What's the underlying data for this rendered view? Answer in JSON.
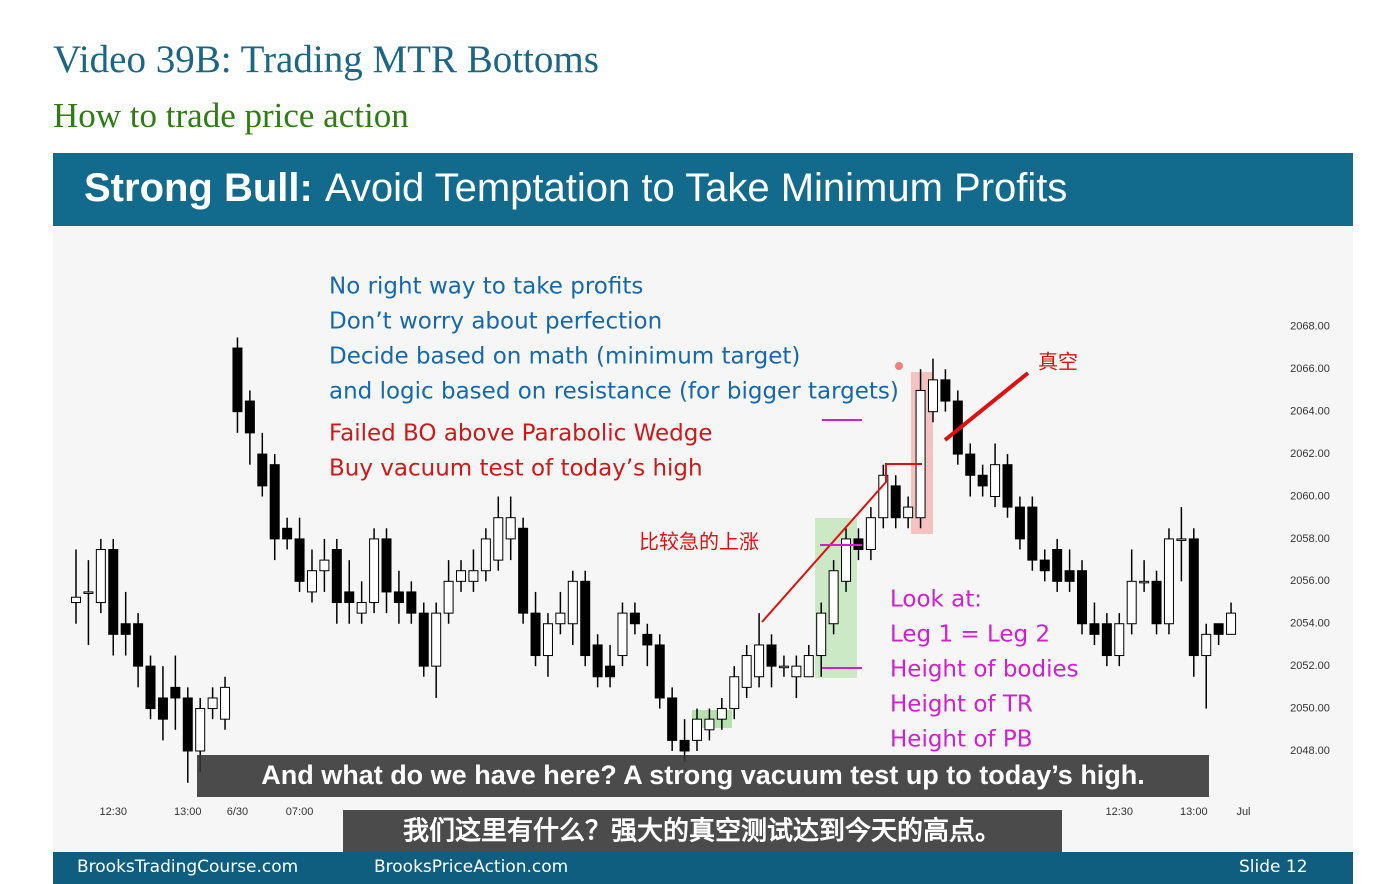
{
  "header": {
    "title": "Video 39B: Trading MTR Bottoms",
    "subtitle": "How to trade price action"
  },
  "slide": {
    "title_bold": "Strong Bull:",
    "title_rest": "Avoid Temptation to Take Minimum Profits",
    "notes_blue": [
      "No right way to take profits",
      "Don’t worry about perfection",
      "Decide based on math (minimum target)",
      "and logic based on resistance (for bigger targets)"
    ],
    "notes_red": [
      "Failed BO above Parabolic Wedge",
      "Buy vacuum test of today’s high"
    ],
    "label_vacuum": "真空",
    "label_rally": "比较急的上涨",
    "look_at": [
      "Look at:",
      "Leg 1 = Leg 2",
      "Height of bodies",
      "Height of TR",
      "Height of PB"
    ],
    "footer": {
      "left": "BrooksTradingCourse.com",
      "center": "BrooksPriceAction.com",
      "slide": "Slide  12"
    }
  },
  "captions": {
    "english": "And what do we have here? A strong vacuum test up to today’s high.",
    "chinese": "我们这里有什么？强大的真空测试达到今天的高点。"
  },
  "chart_data": {
    "type": "candlestick",
    "categories": [
      null,
      null,
      null,
      "12:30",
      null,
      null,
      null,
      null,
      null,
      "13:00",
      null,
      null,
      null,
      "6/30",
      null,
      null,
      null,
      null,
      "07:00",
      null,
      null,
      null,
      null,
      null,
      null,
      null,
      null,
      null,
      null,
      null,
      null,
      null,
      null,
      null,
      null,
      null,
      null,
      null,
      null,
      null,
      null,
      null,
      null,
      null,
      null,
      null,
      null,
      null,
      null,
      null,
      null,
      null,
      null,
      null,
      null,
      null,
      null,
      null,
      null,
      null,
      null,
      null,
      null,
      null,
      null,
      null,
      null,
      null,
      null,
      null,
      null,
      null,
      null,
      null,
      null,
      null,
      null,
      null,
      null,
      null,
      null,
      null,
      null,
      null,
      "12:30",
      null,
      null,
      null,
      null,
      null,
      "13:00",
      null,
      null,
      null,
      "Jul"
    ],
    "open": [
      2055,
      2055.5,
      2055,
      2057.5,
      2054,
      2054,
      2052,
      2050.5,
      2051,
      2050.5,
      2048,
      2050,
      2049.5,
      2067,
      2064.5,
      2062,
      2061.5,
      2058.5,
      2058,
      2055.5,
      2056.5,
      2057.5,
      2055.5,
      2054.5,
      2055,
      2058,
      2055.5,
      2055.5,
      2054.5,
      2052,
      2054.5,
      2056,
      2056,
      2056.5,
      2057,
      2058,
      2058.5,
      2054.5,
      2052.5,
      2054,
      2054,
      2056,
      2053,
      2052,
      2052.5,
      2054.5,
      2053.5,
      2053,
      2050.5,
      2048.5,
      2048.5,
      2049,
      2049.5,
      2050,
      2051,
      2051.5,
      2053,
      2052,
      2051.5,
      2051.5,
      2052.5,
      2054,
      2056,
      2058,
      2057.5,
      2059,
      2060.5,
      2059,
      2059,
      2064,
      2065.5,
      2064.5,
      2062,
      2061,
      2060,
      2061.5,
      2059.5,
      2059.5,
      2057,
      2057.5,
      2056.5,
      2056.5,
      2054,
      2054,
      2052.5,
      2054,
      2056,
      2056,
      2054,
      2058,
      2058,
      2052.5,
      2054,
      2053.5,
      null
    ],
    "high": [
      2057.5,
      2057,
      2058,
      2058,
      2055.5,
      2054.5,
      2052.5,
      2052,
      2052.5,
      2051,
      2050.5,
      2051,
      2051.5,
      2067.5,
      2065,
      2063,
      2062,
      2059,
      2059,
      2057.5,
      2058,
      2058,
      2057,
      2056,
      2058.5,
      2058.5,
      2056.5,
      2056,
      2055,
      2055,
      2057,
      2057,
      2057.5,
      2058.5,
      2060,
      2060,
      2059,
      2055.5,
      2054.5,
      2055.5,
      2056.5,
      2056.5,
      2053.5,
      2053,
      2055,
      2055,
      2054,
      2053.5,
      2051,
      2049.5,
      2050,
      2050,
      2050.5,
      2052,
      2053,
      2054.5,
      2053.5,
      2052.5,
      2052.5,
      2053,
      2055,
      2057,
      2058.5,
      2058.5,
      2059.5,
      2061.5,
      2061,
      2060,
      2066,
      2066.5,
      2066,
      2065,
      2062.5,
      2061.5,
      2062.5,
      2062,
      2060,
      2060,
      2057.5,
      2058,
      2057.5,
      2057,
      2055,
      2054.5,
      2054.5,
      2057.5,
      2057,
      2056.5,
      2058.5,
      2059.5,
      2058.5,
      2054,
      2054,
      2055,
      null
    ],
    "low": [
      2054,
      2053,
      2054.5,
      2052.5,
      2052.5,
      2051,
      2049.5,
      2048.5,
      2049,
      2046.5,
      2047,
      2049.5,
      2049,
      2063,
      2061.5,
      2060,
      2057,
      2057.5,
      2055.5,
      2055,
      2055.5,
      2054,
      2054,
      2054,
      2054.5,
      2054.5,
      2054,
      2054,
      2051.5,
      2050.5,
      2054,
      2055.5,
      2055.5,
      2056,
      2056.5,
      2057,
      2054,
      2052,
      2051.5,
      2053.5,
      2053,
      2052,
      2051,
      2051,
      2052,
      2053.5,
      2052,
      2050,
      2048,
      2047.5,
      2048,
      2048.5,
      2049,
      2049.5,
      2050.5,
      2051,
      2051,
      2051.5,
      2050.5,
      2051.5,
      2051.5,
      2053.5,
      2055.5,
      2057,
      2057,
      2058.5,
      2058.5,
      2058.5,
      2058.5,
      2063.5,
      2064,
      2061.5,
      2060,
      2060,
      2059.5,
      2059,
      2057.5,
      2056.5,
      2056,
      2055.5,
      2055.5,
      2053.5,
      2053,
      2052,
      2052,
      2053.5,
      2055.5,
      2053.5,
      2053.5,
      2056,
      2051.5,
      2050,
      2053,
      2053.5,
      null
    ],
    "close": [
      2055.25,
      2055.5,
      2057.5,
      2053.5,
      2053.5,
      2052,
      2050,
      2049.5,
      2050.5,
      2048,
      2050,
      2050.5,
      2051,
      2064,
      2063,
      2060.5,
      2058,
      2058,
      2056,
      2056.5,
      2057,
      2055,
      2055,
      2055,
      2058,
      2055.5,
      2055,
      2054.5,
      2052,
      2054.5,
      2056,
      2056.5,
      2056.5,
      2058,
      2059,
      2059,
      2054.5,
      2052.5,
      2054,
      2054.5,
      2056,
      2052.5,
      2051.5,
      2051.5,
      2054.5,
      2054,
      2053,
      2050.5,
      2048.5,
      2048,
      2049.5,
      2049.5,
      2050,
      2051.5,
      2052.5,
      2053,
      2052,
      2052,
      2052,
      2052.5,
      2054.5,
      2056.5,
      2058,
      2057.5,
      2059,
      2061,
      2059,
      2059.5,
      2065,
      2065.5,
      2064.5,
      2062,
      2061,
      2060.5,
      2061.5,
      2059.5,
      2058,
      2057,
      2056.5,
      2056,
      2056,
      2054,
      2053.5,
      2052.5,
      2054,
      2056,
      2056,
      2054,
      2058,
      2058,
      2052.5,
      2053.5,
      2053.5,
      2054.5,
      null
    ],
    "ylim": [
      2046,
      2072
    ],
    "yticks": [
      {
        "value": 2048,
        "label": "2048.00"
      },
      {
        "value": 2050,
        "label": "2050.00"
      },
      {
        "value": 2052,
        "label": "2052.00"
      },
      {
        "value": 2054,
        "label": "2054.00"
      },
      {
        "value": 2056,
        "label": "2056.00"
      },
      {
        "value": 2058,
        "label": "2058.00"
      },
      {
        "value": 2060,
        "label": "2060.00"
      },
      {
        "value": 2062,
        "label": "2062.00"
      },
      {
        "value": 2064,
        "label": "2064.00"
      },
      {
        "value": 2066,
        "label": "2066.00"
      },
      {
        "value": 2068,
        "label": "2068.00"
      }
    ],
    "up_color": "#ffffff",
    "down_color": "#000000"
  }
}
